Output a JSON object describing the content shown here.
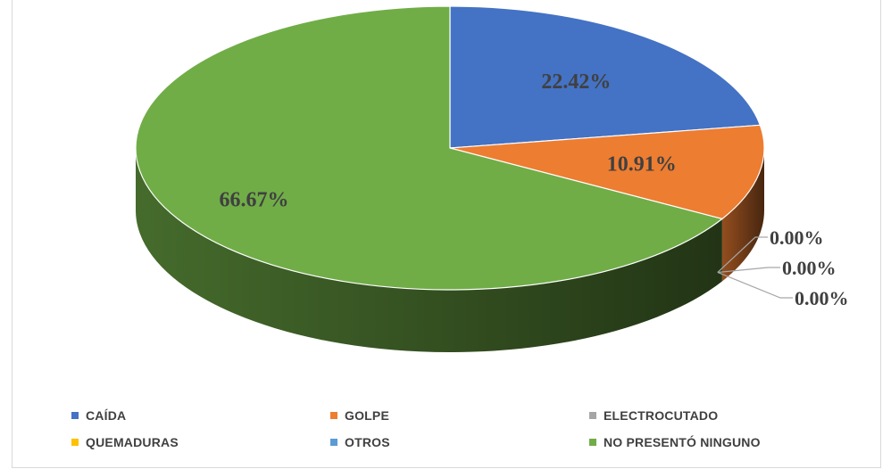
{
  "chart_data": {
    "type": "pie",
    "title": "",
    "slices": [
      {
        "label": "CAÍDA",
        "value": 22.42,
        "display": "22.42%",
        "color": "#4472C4"
      },
      {
        "label": "GOLPE",
        "value": 10.91,
        "display": "10.91%",
        "color": "#ED7D31"
      },
      {
        "label": "ELECTROCUTADO",
        "value": 0.0,
        "display": "0.00%",
        "color": "#A5A5A5"
      },
      {
        "label": "QUEMADURAS",
        "value": 0.0,
        "display": "0.00%",
        "color": "#FFC000"
      },
      {
        "label": "OTROS",
        "value": 0.0,
        "display": "0.00%",
        "color": "#5B9BD5"
      },
      {
        "label": "NO PRESENTÓ NINGUNO",
        "value": 66.67,
        "display": "66.67%",
        "color": "#70AD47"
      }
    ],
    "style": "3d",
    "legend_position": "bottom"
  }
}
